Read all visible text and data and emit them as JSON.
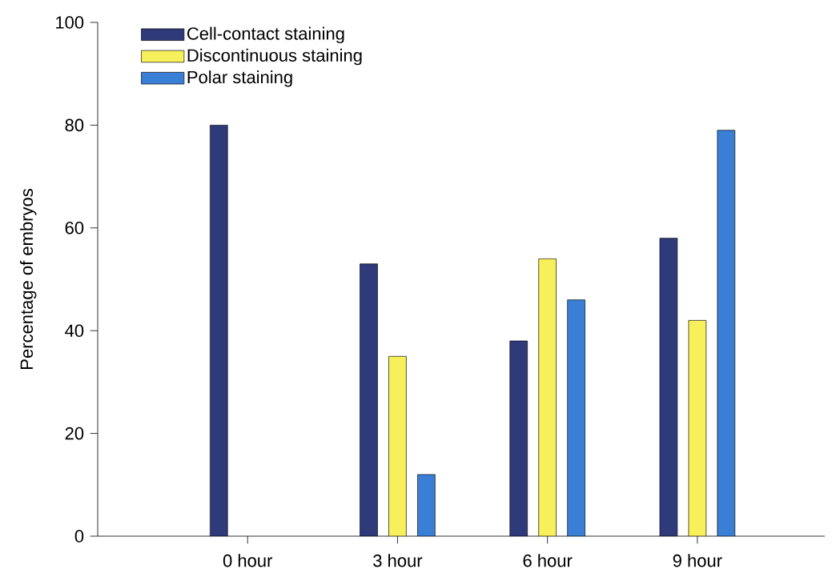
{
  "chart_data": {
    "type": "bar",
    "ylabel": "Percentage of embryos",
    "categories": [
      "0 hour",
      "3 hour",
      "6 hour",
      "9 hour"
    ],
    "series": [
      {
        "name": "Cell-contact staining",
        "color": "#2e3a7a",
        "values": [
          80,
          53,
          38,
          58
        ]
      },
      {
        "name": "Discontinuous staining",
        "color": "#f7f05a",
        "values": [
          null,
          35,
          54,
          42
        ]
      },
      {
        "name": "Polar staining",
        "color": "#3a7fd6",
        "values": [
          null,
          12,
          46,
          79
        ]
      }
    ],
    "ylim": [
      0,
      100
    ],
    "yticks": [
      0,
      20,
      40,
      60,
      80,
      100
    ],
    "legend": "top left",
    "grid": false
  }
}
